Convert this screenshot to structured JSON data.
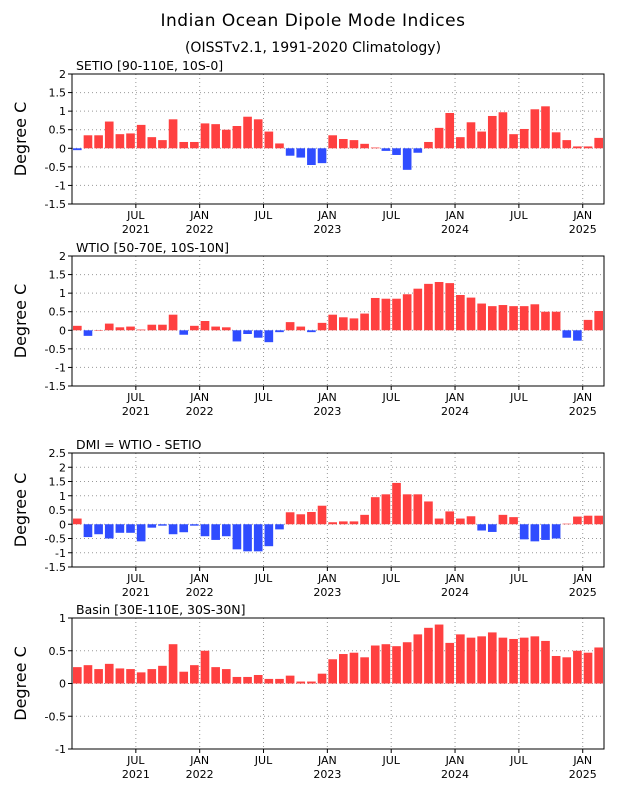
{
  "title": "Indian Ocean Dipole Mode Indices",
  "subtitle": "(OISSTv2.1, 1991-2020 Climatology)",
  "colors": {
    "positive": "#ff4040",
    "negative": "#2f4cff",
    "axis": "#000000",
    "grid": "#999999"
  },
  "x_ticks": [
    {
      "month": "JUL",
      "year": "2021"
    },
    {
      "month": "JAN",
      "year": "2022"
    },
    {
      "month": "JUL",
      "year": ""
    },
    {
      "month": "JAN",
      "year": "2023"
    },
    {
      "month": "JUL",
      "year": ""
    },
    {
      "month": "JAN",
      "year": "2024"
    },
    {
      "month": "JUL",
      "year": ""
    },
    {
      "month": "JAN",
      "year": "2025"
    }
  ],
  "chart_data": [
    {
      "type": "bar",
      "title": "SETIO [90-110E, 10S-0]",
      "ylabel": "Degree C",
      "ylim": [
        -1.5,
        2
      ],
      "yticks": [
        "-1.5",
        "-1",
        "-0.5",
        "0",
        "0.5",
        "1",
        "1.5",
        "2"
      ],
      "grid": true,
      "values": [
        -0.05,
        0.35,
        0.35,
        0.72,
        0.38,
        0.4,
        0.63,
        0.3,
        0.22,
        0.78,
        0.17,
        0.17,
        0.67,
        0.65,
        0.5,
        0.6,
        0.85,
        0.78,
        0.45,
        0.13,
        -0.2,
        -0.25,
        -0.45,
        -0.4,
        0.35,
        0.25,
        0.22,
        0.12,
        0.02,
        -0.07,
        -0.18,
        -0.58,
        -0.12,
        0.17,
        0.55,
        0.95,
        0.3,
        0.7,
        0.45,
        0.87,
        0.97,
        0.38,
        0.52,
        1.05,
        1.13,
        0.43,
        0.22,
        0.05,
        0.05,
        0.28
      ]
    },
    {
      "type": "bar",
      "title": "WTIO [50-70E, 10S-10N]",
      "ylabel": "Degree C",
      "ylim": [
        -1.5,
        2
      ],
      "yticks": [
        "-1.5",
        "-1",
        "-0.5",
        "0",
        "0.5",
        "1",
        "1.5",
        "2"
      ],
      "grid": true,
      "values": [
        0.12,
        -0.15,
        0.0,
        0.18,
        0.08,
        0.1,
        0.02,
        0.15,
        0.15,
        0.42,
        -0.12,
        0.12,
        0.25,
        0.1,
        0.08,
        -0.3,
        -0.1,
        -0.2,
        -0.32,
        -0.05,
        0.22,
        0.1,
        -0.05,
        0.2,
        0.42,
        0.35,
        0.32,
        0.45,
        0.87,
        0.85,
        0.85,
        0.97,
        1.12,
        1.25,
        1.3,
        1.27,
        0.95,
        0.88,
        0.72,
        0.65,
        0.68,
        0.65,
        0.65,
        0.7,
        0.5,
        0.5,
        -0.2,
        -0.28,
        0.28,
        0.52
      ]
    },
    {
      "type": "bar",
      "title": "DMI = WTIO - SETIO",
      "ylabel": "Degree C",
      "ylim": [
        -1.5,
        2.5
      ],
      "yticks": [
        "-1.5",
        "-1",
        "-0.5",
        "0",
        "0.5",
        "1",
        "1.5",
        "2",
        "2.5"
      ],
      "grid": true,
      "values": [
        0.2,
        -0.45,
        -0.35,
        -0.5,
        -0.3,
        -0.3,
        -0.6,
        -0.12,
        -0.05,
        -0.35,
        -0.28,
        -0.05,
        -0.42,
        -0.55,
        -0.42,
        -0.88,
        -0.95,
        -0.95,
        -0.77,
        -0.18,
        0.42,
        0.35,
        0.43,
        0.65,
        0.07,
        0.1,
        0.1,
        0.33,
        0.95,
        1.05,
        1.45,
        1.05,
        1.05,
        0.8,
        0.2,
        0.45,
        0.2,
        0.28,
        -0.22,
        -0.27,
        0.33,
        0.25,
        -0.53,
        -0.6,
        -0.55,
        -0.5,
        0.02,
        0.27,
        0.3,
        0.3
      ]
    },
    {
      "type": "bar",
      "title": "Basin [30E-110E, 30S-30N]",
      "ylabel": "Degree C",
      "ylim": [
        -1,
        1
      ],
      "yticks": [
        "-1",
        "-0.5",
        "0",
        "0.5",
        "1"
      ],
      "grid": true,
      "values": [
        0.25,
        0.28,
        0.22,
        0.3,
        0.23,
        0.22,
        0.17,
        0.22,
        0.27,
        0.6,
        0.18,
        0.28,
        0.5,
        0.25,
        0.22,
        0.1,
        0.1,
        0.13,
        0.07,
        0.07,
        0.12,
        0.03,
        0.03,
        0.15,
        0.37,
        0.45,
        0.47,
        0.4,
        0.58,
        0.6,
        0.57,
        0.63,
        0.75,
        0.85,
        0.9,
        0.62,
        0.75,
        0.7,
        0.72,
        0.78,
        0.7,
        0.68,
        0.7,
        0.72,
        0.65,
        0.42,
        0.4,
        0.5,
        0.47,
        0.55
      ]
    }
  ]
}
